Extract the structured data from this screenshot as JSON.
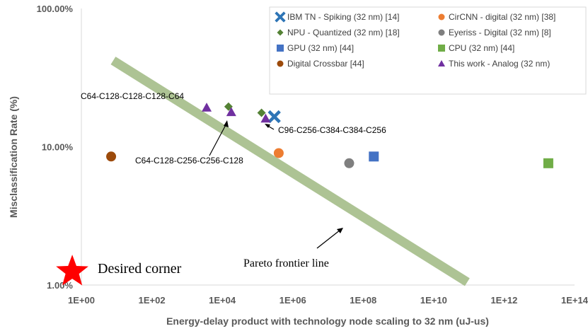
{
  "chart_data": {
    "type": "scatter",
    "x_scale": "log",
    "y_scale": "log",
    "xlabel": "Energy-delay product with technology node scaling to 32 nm (uJ-us)",
    "ylabel": "Misclassification Rate (%)",
    "x_ticks": [
      "1E+00",
      "1E+02",
      "1E+04",
      "1E+06",
      "1E+08",
      "1E+10",
      "1E+12",
      "1E+14"
    ],
    "x_tick_values": [
      1,
      100,
      10000,
      1000000,
      100000000,
      10000000000,
      1000000000000,
      100000000000000
    ],
    "y_ticks": [
      "1.00%",
      "10.00%",
      "100.00%"
    ],
    "y_tick_values": [
      1,
      10,
      100
    ],
    "xlim": [
      1,
      100000000000000
    ],
    "ylim": [
      1,
      100
    ],
    "legend_position": "top-right",
    "series": [
      {
        "name": "IBM TN - Spiking (32 nm) [14]",
        "marker": "x",
        "color": "#2E75B6",
        "points": [
          {
            "x": 300000,
            "y": 16.5
          }
        ]
      },
      {
        "name": "CirCNN - digital (32 nm) [38]",
        "marker": "circle",
        "color": "#ED7D31",
        "points": [
          {
            "x": 400000,
            "y": 9.0
          }
        ]
      },
      {
        "name": "NPU - Quantized (32 nm) [18]",
        "marker": "diamond",
        "color": "#548235",
        "points": [
          {
            "x": 15000,
            "y": 19.5
          },
          {
            "x": 130000,
            "y": 17.6
          }
        ]
      },
      {
        "name": "Eyeriss - Digital (32 nm) [8]",
        "marker": "circle",
        "color": "#7F7F7F",
        "points": [
          {
            "x": 40000000,
            "y": 7.6
          }
        ]
      },
      {
        "name": "GPU (32 nm) [44]",
        "marker": "square",
        "color": "#4472C4",
        "points": [
          {
            "x": 200000000,
            "y": 8.5
          }
        ]
      },
      {
        "name": "CPU (32 nm) [44]",
        "marker": "square",
        "color": "#70AD47",
        "points": [
          {
            "x": 18000000000000.0,
            "y": 7.6
          }
        ]
      },
      {
        "name": "Digital Crossbar [44]",
        "marker": "circle",
        "color": "#9C4A0B",
        "points": [
          {
            "x": 7,
            "y": 8.5
          }
        ]
      },
      {
        "name": "This work - Analog (32 nm)",
        "marker": "triangle",
        "color": "#7030A0",
        "points": [
          {
            "x": 3600,
            "y": 19.2
          },
          {
            "x": 18000,
            "y": 17.8
          },
          {
            "x": 170000,
            "y": 16.0
          }
        ]
      }
    ],
    "pareto_line": {
      "label": "Pareto frontier line",
      "color": "#A9C08F",
      "points": [
        {
          "x": 8,
          "y": 42
        },
        {
          "x": 90000000000,
          "y": 1.05
        }
      ]
    },
    "desired_corner": {
      "label": "Desired corner",
      "color": "#FF0000",
      "marker": "star",
      "point": {
        "x": 0.55,
        "y": 1.25
      }
    },
    "annotations": [
      {
        "text": "C64-C128-C128-C128-C64"
      },
      {
        "text": "C64-C128-C256-C256-C128"
      },
      {
        "text": "C96-C256-C384-C384-C256"
      }
    ]
  }
}
